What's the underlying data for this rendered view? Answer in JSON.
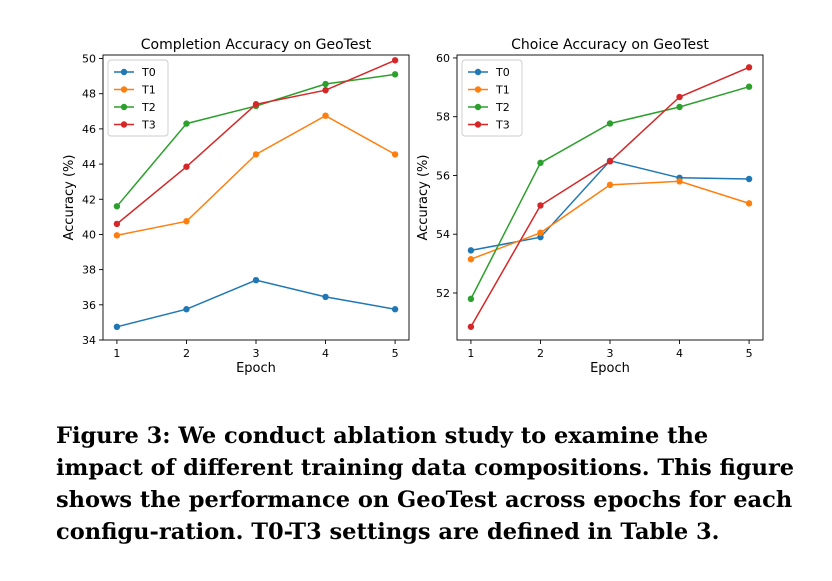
{
  "chart_data": [
    {
      "type": "line",
      "title": "Completion Accuracy on GeoTest",
      "xlabel": "Epoch",
      "ylabel": "Accuracy (%)",
      "x": [
        1,
        2,
        3,
        4,
        5
      ],
      "xlim": [
        0.8,
        5.2
      ],
      "ylim": [
        34,
        50.2
      ],
      "yticks": [
        34,
        36,
        38,
        40,
        42,
        44,
        46,
        48,
        50
      ],
      "grid": false,
      "legend": "upper-left",
      "series": [
        {
          "name": "T0",
          "color": "#1f77b4",
          "values": [
            34.75,
            35.75,
            37.4,
            36.45,
            35.75
          ]
        },
        {
          "name": "T1",
          "color": "#ff7f0e",
          "values": [
            39.95,
            40.75,
            44.55,
            46.75,
            44.55
          ]
        },
        {
          "name": "T2",
          "color": "#2ca02c",
          "values": [
            41.6,
            46.3,
            47.3,
            48.55,
            49.1
          ]
        },
        {
          "name": "T3",
          "color": "#d62728",
          "values": [
            40.6,
            43.85,
            47.4,
            48.2,
            49.9
          ]
        }
      ]
    },
    {
      "type": "line",
      "title": "Choice Accuracy on GeoTest",
      "xlabel": "Epoch",
      "ylabel": "Accuracy (%)",
      "x": [
        1,
        2,
        3,
        4,
        5
      ],
      "xlim": [
        0.8,
        5.2
      ],
      "ylim": [
        50.4,
        60.1
      ],
      "yticks": [
        52,
        54,
        56,
        58,
        60
      ],
      "grid": false,
      "legend": "upper-left",
      "series": [
        {
          "name": "T0",
          "color": "#1f77b4",
          "values": [
            53.45,
            53.9,
            56.5,
            55.92,
            55.88
          ]
        },
        {
          "name": "T1",
          "color": "#ff7f0e",
          "values": [
            53.15,
            54.05,
            55.68,
            55.8,
            55.05
          ]
        },
        {
          "name": "T2",
          "color": "#2ca02c",
          "values": [
            51.8,
            56.43,
            57.77,
            58.33,
            59.02
          ]
        },
        {
          "name": "T3",
          "color": "#d62728",
          "values": [
            50.85,
            54.98,
            56.48,
            58.67,
            59.68
          ]
        }
      ]
    }
  ],
  "caption": "Figure 3: We conduct ablation study to examine the impact of different training data compositions. This figure shows the performance on GeoTest across epochs for each configu-ration. T0-T3 settings are defined in Table 3."
}
